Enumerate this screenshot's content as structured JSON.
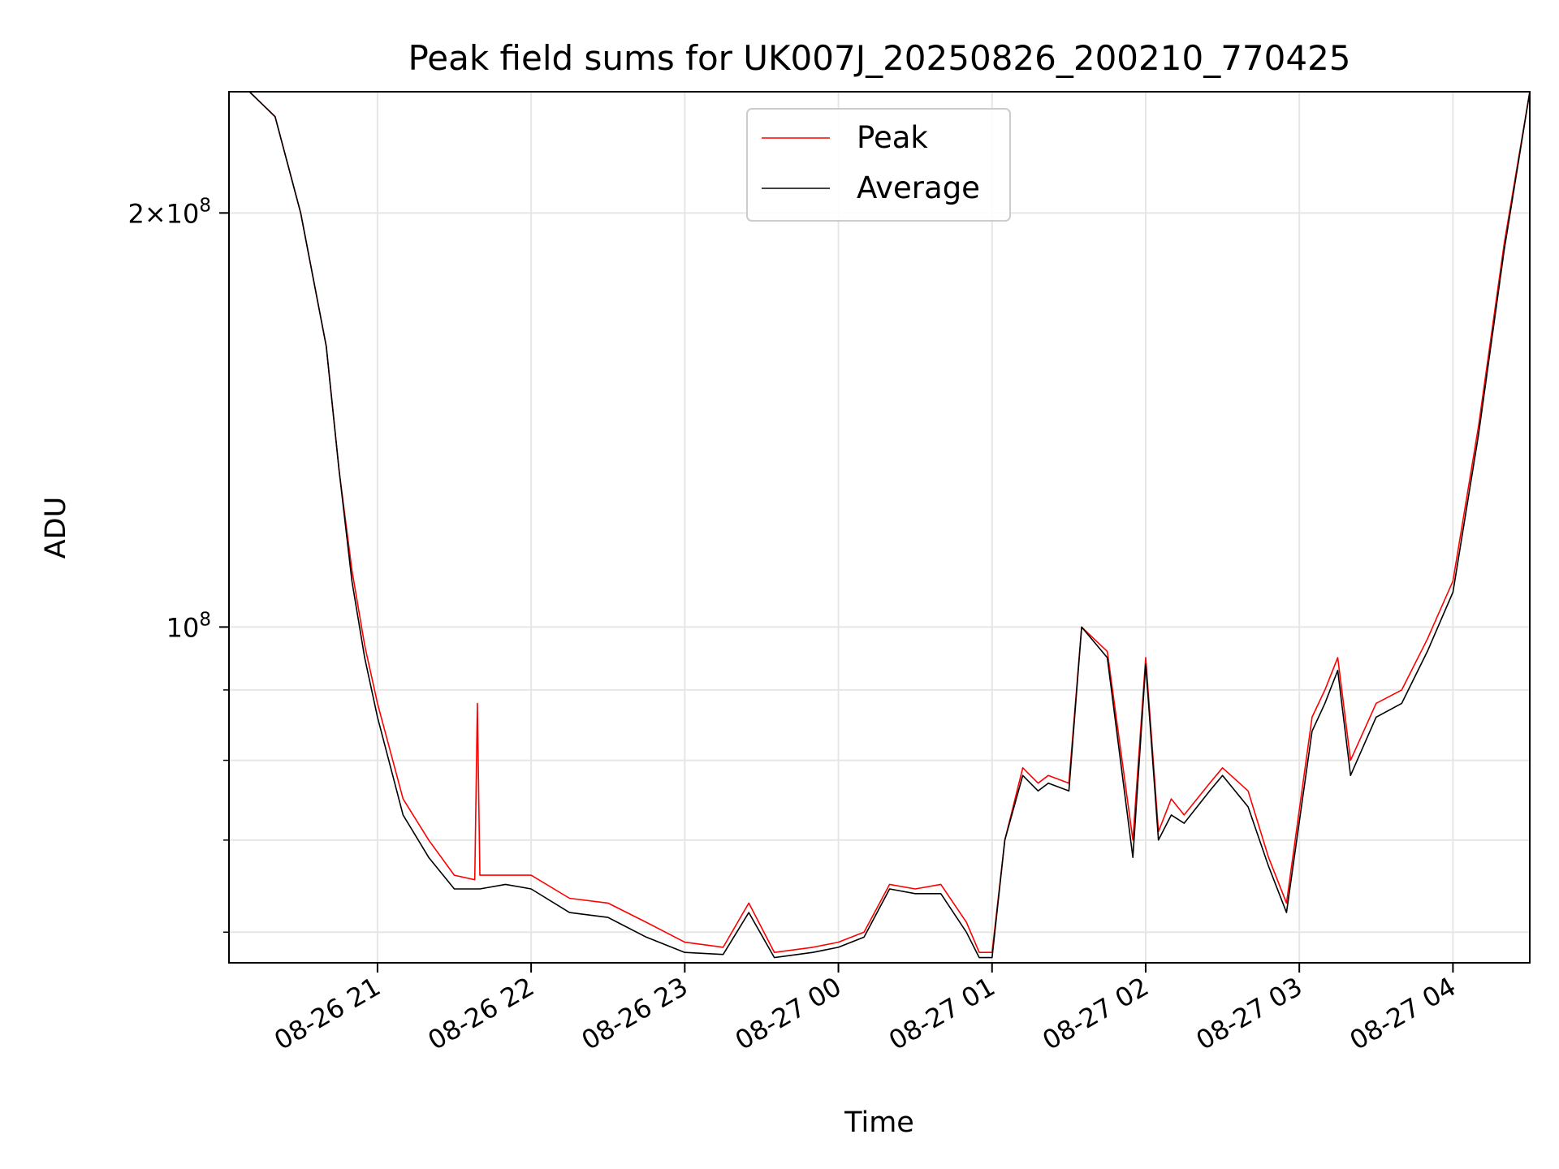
{
  "chart_data": {
    "type": "line",
    "title": "Peak field sums for UK007J_20250826_200210_770425",
    "xlabel": "Time",
    "ylabel": "ADU",
    "x_axis": "datetime",
    "y_scale": "log",
    "xlim": [
      "2025-08-26 20:02",
      "2025-08-27 04:30"
    ],
    "ylim": [
      57000000,
      245000000
    ],
    "x_ticks": [
      {
        "value": "2025-08-26 21:00",
        "label": "08-26 21"
      },
      {
        "value": "2025-08-26 22:00",
        "label": "08-26 22"
      },
      {
        "value": "2025-08-26 23:00",
        "label": "08-26 23"
      },
      {
        "value": "2025-08-27 00:00",
        "label": "08-27 00"
      },
      {
        "value": "2025-08-27 01:00",
        "label": "08-27 01"
      },
      {
        "value": "2025-08-27 02:00",
        "label": "08-27 02"
      },
      {
        "value": "2025-08-27 03:00",
        "label": "08-27 03"
      },
      {
        "value": "2025-08-27 04:00",
        "label": "08-27 04"
      }
    ],
    "y_ticks": [
      {
        "value": 100000000,
        "base": "10",
        "exp": "8",
        "coef": ""
      },
      {
        "value": 200000000,
        "base": "10",
        "exp": "8",
        "coef": "2"
      }
    ],
    "y_minor_ticks": [
      60000000,
      70000000,
      80000000,
      90000000
    ],
    "grid": true,
    "legend_position": "top-center",
    "series": [
      {
        "name": "Peak",
        "color": "#ff0000",
        "x": [
          "2025-08-26 20:02",
          "2025-08-26 20:10",
          "2025-08-26 20:20",
          "2025-08-26 20:30",
          "2025-08-26 20:40",
          "2025-08-26 20:45",
          "2025-08-26 20:50",
          "2025-08-26 20:55",
          "2025-08-26 21:00",
          "2025-08-26 21:10",
          "2025-08-26 21:20",
          "2025-08-26 21:30",
          "2025-08-26 21:38",
          "2025-08-26 21:39",
          "2025-08-26 21:40",
          "2025-08-26 21:50",
          "2025-08-26 22:00",
          "2025-08-26 22:15",
          "2025-08-26 22:30",
          "2025-08-26 22:45",
          "2025-08-26 23:00",
          "2025-08-26 23:15",
          "2025-08-26 23:25",
          "2025-08-26 23:35",
          "2025-08-26 23:50",
          "2025-08-27 00:00",
          "2025-08-27 00:10",
          "2025-08-27 00:20",
          "2025-08-27 00:30",
          "2025-08-27 00:40",
          "2025-08-27 00:50",
          "2025-08-27 00:55",
          "2025-08-27 01:00",
          "2025-08-27 01:05",
          "2025-08-27 01:12",
          "2025-08-27 01:18",
          "2025-08-27 01:22",
          "2025-08-27 01:30",
          "2025-08-27 01:35",
          "2025-08-27 01:45",
          "2025-08-27 01:55",
          "2025-08-27 02:00",
          "2025-08-27 02:05",
          "2025-08-27 02:10",
          "2025-08-27 02:15",
          "2025-08-27 02:25",
          "2025-08-27 02:30",
          "2025-08-27 02:40",
          "2025-08-27 02:48",
          "2025-08-27 02:55",
          "2025-08-27 03:05",
          "2025-08-27 03:10",
          "2025-08-27 03:15",
          "2025-08-27 03:20",
          "2025-08-27 03:30",
          "2025-08-27 03:40",
          "2025-08-27 03:50",
          "2025-08-27 04:00",
          "2025-08-27 04:10",
          "2025-08-27 04:20",
          "2025-08-27 04:30"
        ],
        "y": [
          245000000,
          245000000,
          235000000,
          200000000,
          160000000,
          130000000,
          110000000,
          97000000,
          88000000,
          75000000,
          70000000,
          66000000,
          65500000,
          88000000,
          66000000,
          66000000,
          66000000,
          63500000,
          63000000,
          61000000,
          59000000,
          58500000,
          63000000,
          58000000,
          58500000,
          59000000,
          60000000,
          65000000,
          64500000,
          65000000,
          61000000,
          58000000,
          58000000,
          70000000,
          79000000,
          77000000,
          78000000,
          77000000,
          100000000,
          96000000,
          70000000,
          95000000,
          71000000,
          75000000,
          73000000,
          77000000,
          79000000,
          76000000,
          68000000,
          63000000,
          86000000,
          90000000,
          95000000,
          80000000,
          88000000,
          90000000,
          98000000,
          108000000,
          140000000,
          190000000,
          245000000
        ]
      },
      {
        "name": "Average",
        "color": "#000000",
        "x": [
          "2025-08-26 20:02",
          "2025-08-26 20:10",
          "2025-08-26 20:20",
          "2025-08-26 20:30",
          "2025-08-26 20:40",
          "2025-08-26 20:45",
          "2025-08-26 20:50",
          "2025-08-26 20:55",
          "2025-08-26 21:00",
          "2025-08-26 21:10",
          "2025-08-26 21:20",
          "2025-08-26 21:30",
          "2025-08-26 21:40",
          "2025-08-26 21:50",
          "2025-08-26 22:00",
          "2025-08-26 22:15",
          "2025-08-26 22:30",
          "2025-08-26 22:45",
          "2025-08-26 23:00",
          "2025-08-26 23:15",
          "2025-08-26 23:25",
          "2025-08-26 23:35",
          "2025-08-26 23:50",
          "2025-08-27 00:00",
          "2025-08-27 00:10",
          "2025-08-27 00:20",
          "2025-08-27 00:30",
          "2025-08-27 00:40",
          "2025-08-27 00:50",
          "2025-08-27 00:55",
          "2025-08-27 01:00",
          "2025-08-27 01:05",
          "2025-08-27 01:12",
          "2025-08-27 01:18",
          "2025-08-27 01:22",
          "2025-08-27 01:30",
          "2025-08-27 01:35",
          "2025-08-27 01:45",
          "2025-08-27 01:55",
          "2025-08-27 02:00",
          "2025-08-27 02:05",
          "2025-08-27 02:10",
          "2025-08-27 02:15",
          "2025-08-27 02:25",
          "2025-08-27 02:30",
          "2025-08-27 02:40",
          "2025-08-27 02:48",
          "2025-08-27 02:55",
          "2025-08-27 03:05",
          "2025-08-27 03:10",
          "2025-08-27 03:15",
          "2025-08-27 03:20",
          "2025-08-27 03:30",
          "2025-08-27 03:40",
          "2025-08-27 03:50",
          "2025-08-27 04:00",
          "2025-08-27 04:10",
          "2025-08-27 04:20",
          "2025-08-27 04:30"
        ],
        "y": [
          245000000,
          245000000,
          235000000,
          200000000,
          160000000,
          130000000,
          108000000,
          95000000,
          86000000,
          73000000,
          68000000,
          64500000,
          64500000,
          65000000,
          64500000,
          62000000,
          61500000,
          59500000,
          58000000,
          57800000,
          62000000,
          57500000,
          58000000,
          58500000,
          59500000,
          64500000,
          64000000,
          64000000,
          60000000,
          57500000,
          57500000,
          70000000,
          78000000,
          76000000,
          77000000,
          76000000,
          100000000,
          95000000,
          68000000,
          94000000,
          70000000,
          73000000,
          72000000,
          76000000,
          78000000,
          74000000,
          67000000,
          62000000,
          84000000,
          88000000,
          93000000,
          78000000,
          86000000,
          88000000,
          96000000,
          106000000,
          138000000,
          188000000,
          245000000
        ]
      }
    ]
  }
}
